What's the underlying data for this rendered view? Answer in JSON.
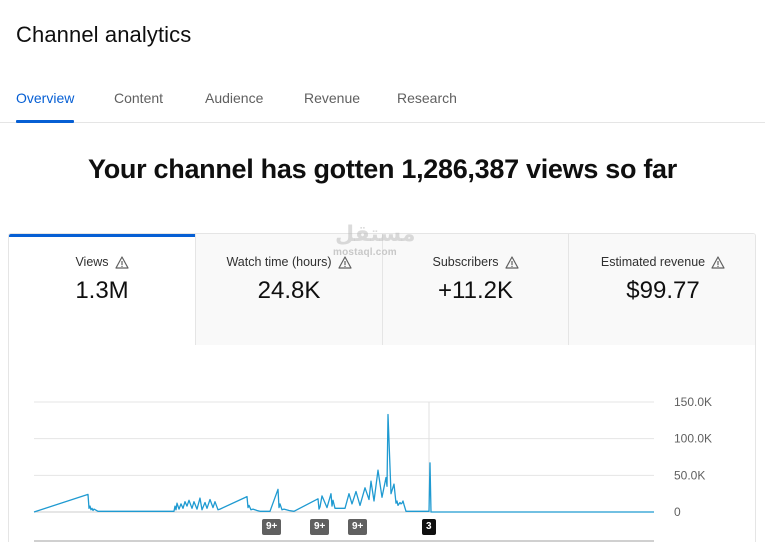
{
  "header": {
    "title": "Channel analytics"
  },
  "tabs": [
    {
      "label": "Overview",
      "active": true
    },
    {
      "label": "Content",
      "active": false
    },
    {
      "label": "Audience",
      "active": false
    },
    {
      "label": "Revenue",
      "active": false
    },
    {
      "label": "Research",
      "active": false
    }
  ],
  "headline": "Your channel has gotten 1,286,387 views so far",
  "metrics": [
    {
      "label": "Views",
      "value": "1.3M",
      "icon": "warning-icon",
      "active": true
    },
    {
      "label": "Watch time (hours)",
      "value": "24.8K",
      "icon": "warning-icon",
      "active": false
    },
    {
      "label": "Subscribers",
      "value": "+11.2K",
      "icon": "warning-icon",
      "active": false
    },
    {
      "label": "Estimated revenue",
      "value": "$99.77",
      "icon": "warning-icon",
      "active": false
    }
  ],
  "colors": {
    "accent": "#065fd4",
    "series": "#1f9ad1",
    "text_secondary": "#606060"
  },
  "watermark": {
    "arabic": "مستقل",
    "latin": "mostaql.com"
  },
  "chart_data": {
    "type": "line",
    "series_name": "Views",
    "y_ticks": [
      "150.0K",
      "100.0K",
      "50.0K",
      "0"
    ],
    "ylim": [
      0,
      150000
    ],
    "grid": true,
    "x": [
      0,
      54,
      55,
      56,
      57,
      58,
      59,
      60,
      64,
      105,
      140,
      141,
      142,
      143,
      145,
      147,
      149,
      151,
      153,
      155,
      158,
      160,
      163,
      166,
      168,
      171,
      173,
      176,
      179,
      181,
      184,
      186,
      213,
      214,
      215,
      217,
      219,
      223,
      226,
      236,
      244,
      245,
      246,
      248,
      250,
      255,
      260,
      284,
      285,
      286,
      288,
      293,
      297,
      298,
      299,
      301,
      311,
      315,
      318,
      322,
      326,
      331,
      335,
      337,
      340,
      344,
      348,
      352,
      353,
      354,
      357,
      360,
      362,
      363,
      364,
      366,
      367,
      368,
      369,
      370,
      372,
      395,
      396,
      397,
      620
    ],
    "y": [
      0,
      24000,
      5000,
      8000,
      3000,
      5000,
      2000,
      4000,
      1000,
      1000,
      1000,
      8000,
      3000,
      12000,
      4000,
      11000,
      5000,
      14000,
      8000,
      16000,
      5000,
      14000,
      4000,
      19000,
      3000,
      13000,
      5000,
      17000,
      6000,
      14000,
      3000,
      4000,
      21000,
      6000,
      9000,
      3000,
      4000,
      2000,
      1000,
      1000,
      31000,
      6000,
      11000,
      3000,
      4000,
      2000,
      1000,
      18000,
      4000,
      7000,
      22000,
      6000,
      25000,
      8000,
      16000,
      5000,
      5000,
      25000,
      11000,
      28000,
      9000,
      33000,
      17000,
      42000,
      15000,
      57000,
      20000,
      47000,
      35000,
      133000,
      25000,
      38000,
      12000,
      15000,
      9000,
      13000,
      11000,
      12000,
      15000,
      10000,
      1000,
      1000,
      67000,
      0,
      0
    ],
    "annotations": [
      {
        "x": 236,
        "label": "9+"
      },
      {
        "x": 284,
        "label": "9+"
      },
      {
        "x": 322,
        "label": "9+"
      },
      {
        "x": 396,
        "label": "3"
      }
    ]
  }
}
